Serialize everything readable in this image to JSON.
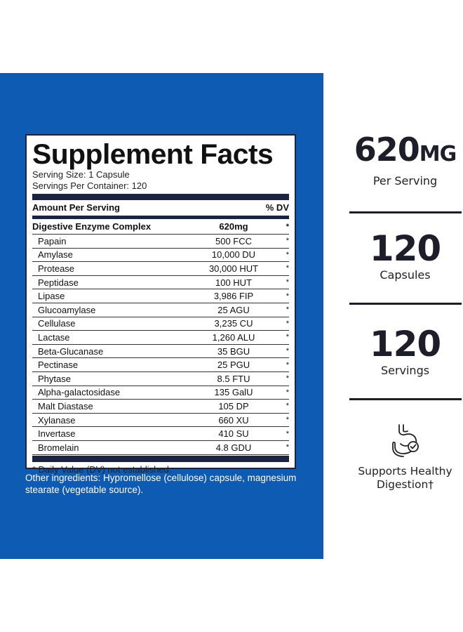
{
  "panel": {
    "title": "Supplement Facts",
    "serving_size": "Serving Size: 1 Capsule",
    "servings_per_container": "Servings Per Container: 120",
    "header": {
      "amount_label": "Amount Per Serving",
      "dv_label": "% DV"
    },
    "main_row": {
      "name": "Digestive Enzyme Complex",
      "amount": "620mg",
      "dv": "*"
    },
    "ingredients": [
      {
        "name": "Papain",
        "amount": "500 FCC",
        "dv": "*"
      },
      {
        "name": "Amylase",
        "amount": "10,000 DU",
        "dv": "*"
      },
      {
        "name": "Protease",
        "amount": "30,000 HUT",
        "dv": "*"
      },
      {
        "name": "Peptidase",
        "amount": "100 HUT",
        "dv": "*"
      },
      {
        "name": "Lipase",
        "amount": "3,986 FIP",
        "dv": "*"
      },
      {
        "name": "Glucoamylase",
        "amount": "25 AGU",
        "dv": "*"
      },
      {
        "name": "Cellulase",
        "amount": "3,235 CU",
        "dv": "*"
      },
      {
        "name": "Lactase",
        "amount": "1,260 ALU",
        "dv": "*"
      },
      {
        "name": "Beta-Glucanase",
        "amount": "35 BGU",
        "dv": "*"
      },
      {
        "name": "Pectinase",
        "amount": "25 PGU",
        "dv": "*"
      },
      {
        "name": "Phytase",
        "amount": "8.5 FTU",
        "dv": "*"
      },
      {
        "name": "Alpha-galactosidase",
        "amount": "135 GalU",
        "dv": "*"
      },
      {
        "name": "Malt Diastase",
        "amount": "105 DP",
        "dv": "*"
      },
      {
        "name": "Xylanase",
        "amount": "660 XU",
        "dv": "*"
      },
      {
        "name": "Invertase",
        "amount": "410 SU",
        "dv": "*"
      },
      {
        "name": "Bromelain",
        "amount": "4.8 GDU",
        "dv": "*"
      }
    ],
    "footnote": "* Daily Value (DV) not established."
  },
  "other_ingredients": "Other ingredients: Hypromellose (cellulose) capsule, magnesium stearate (vegetable source).",
  "stats": [
    {
      "value": "620",
      "unit": "MG",
      "label": "Per Serving"
    },
    {
      "value": "120",
      "unit": "",
      "label": "Capsules"
    },
    {
      "value": "120",
      "unit": "",
      "label": "Servings"
    }
  ],
  "benefit": {
    "line1": "Supports Healthy",
    "line2": "Digestion†",
    "icon": "stomach-icon"
  },
  "colors": {
    "panel_blue": "#0d5bb3",
    "navy": "#1b2340"
  }
}
